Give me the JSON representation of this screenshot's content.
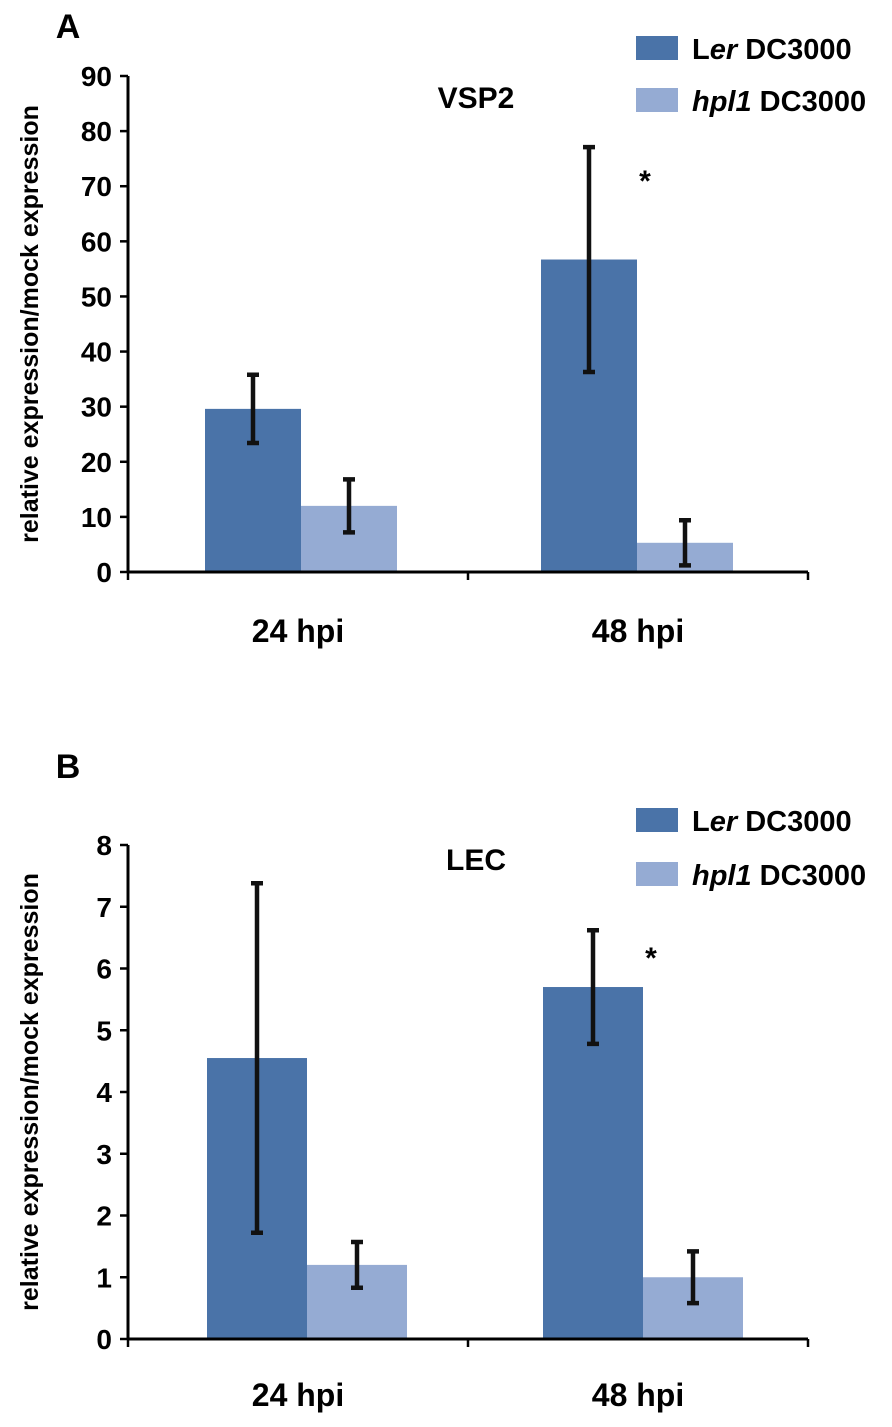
{
  "chart_data": [
    {
      "type": "bar",
      "panel": "A",
      "title": "VSP2",
      "ylabel": "relative expression/mock expression",
      "xlabel": "",
      "categories": [
        "24 hpi",
        "48 hpi"
      ],
      "ylim": [
        0,
        90
      ],
      "yticks": [
        0,
        10,
        20,
        30,
        40,
        50,
        60,
        70,
        80,
        90
      ],
      "grid": false,
      "legend_position": "top-right",
      "series": [
        {
          "name": "Ler DC3000",
          "name_prefix": "L",
          "name_italic": "er",
          "name_suffix": " DC3000",
          "color": "#4a73a8",
          "values": [
            29.6,
            56.7
          ],
          "error": [
            6.2,
            20.4
          ]
        },
        {
          "name": "hpl1 DC3000",
          "name_prefix": "",
          "name_italic": "hpl1",
          "name_suffix": " DC3000",
          "color": "#95abd3",
          "values": [
            12.0,
            5.3
          ],
          "error": [
            4.8,
            4.1
          ]
        }
      ],
      "annotations": [
        {
          "text": "*",
          "category": 1,
          "series": 0
        }
      ]
    },
    {
      "type": "bar",
      "panel": "B",
      "title": "LEC",
      "ylabel": "relative expression/mock expression",
      "xlabel": "",
      "categories": [
        "24 hpi",
        "48 hpi"
      ],
      "ylim": [
        0,
        8
      ],
      "yticks": [
        0,
        1,
        2,
        3,
        4,
        5,
        6,
        7,
        8
      ],
      "grid": false,
      "legend_position": "top-right",
      "series": [
        {
          "name": "Ler DC3000",
          "name_prefix": "L",
          "name_italic": "er",
          "name_suffix": " DC3000",
          "color": "#4a73a8",
          "values": [
            4.55,
            5.7
          ],
          "error": [
            2.83,
            0.92
          ]
        },
        {
          "name": "hpl1 DC3000",
          "name_prefix": "",
          "name_italic": "hpl1",
          "name_suffix": " DC3000",
          "color": "#95abd3",
          "values": [
            1.2,
            1.0
          ],
          "error": [
            0.37,
            0.42
          ]
        }
      ],
      "annotations": [
        {
          "text": "*",
          "category": 1,
          "series": 0
        }
      ]
    }
  ]
}
